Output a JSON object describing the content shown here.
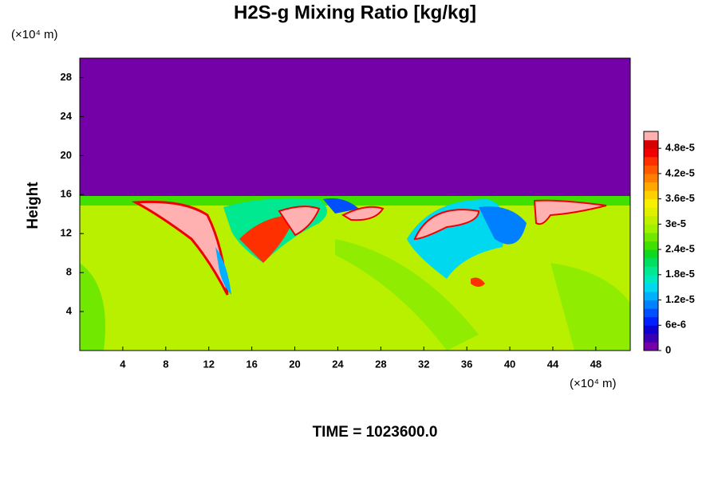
{
  "chart_data": {
    "type": "heatmap",
    "title": "H2S-g Mixing Ratio [kg/kg]",
    "y_unit": "(×10⁴ m)",
    "x_unit": "(×10⁴ m)",
    "ylabel": "Height",
    "footer": "TIME = 1023600.0",
    "xlim": [
      0,
      51.2
    ],
    "xticks": [
      4,
      8,
      12,
      16,
      20,
      24,
      28,
      32,
      36,
      40,
      44,
      48
    ],
    "ylim": [
      0,
      30
    ],
    "yticks": [
      4,
      8,
      12,
      16,
      20,
      24,
      28
    ],
    "clim": [
      0,
      5.2e-05
    ],
    "cticks": [
      0,
      {
        "value": 6e-06,
        "label": "6e-6"
      },
      {
        "value": 1.2e-05,
        "label": "1.2e-5"
      },
      {
        "value": 1.8e-05,
        "label": "1.8e-5"
      },
      {
        "value": 2.4e-05,
        "label": "2.4e-5"
      },
      {
        "value": 3e-05,
        "label": "3e-5"
      },
      {
        "value": 3.6e-05,
        "label": "3.6e-5"
      },
      {
        "value": 4.2e-05,
        "label": "4.2e-5"
      },
      {
        "value": 4.8e-05,
        "label": "4.8e-5"
      }
    ],
    "colors": [
      "#7400a8",
      "#3c00b4",
      "#1000d0",
      "#0020ff",
      "#0050ff",
      "#0080ff",
      "#00b0ff",
      "#00d8f0",
      "#00e8c0",
      "#00e890",
      "#00e060",
      "#10d820",
      "#40e000",
      "#70e800",
      "#a0f000",
      "#c0f000",
      "#e0f000",
      "#f8f000",
      "#ffd000",
      "#ffa800",
      "#ff8000",
      "#ff5800",
      "#ff3000",
      "#f00000",
      "#d80000",
      "#ffb0b0"
    ]
  }
}
